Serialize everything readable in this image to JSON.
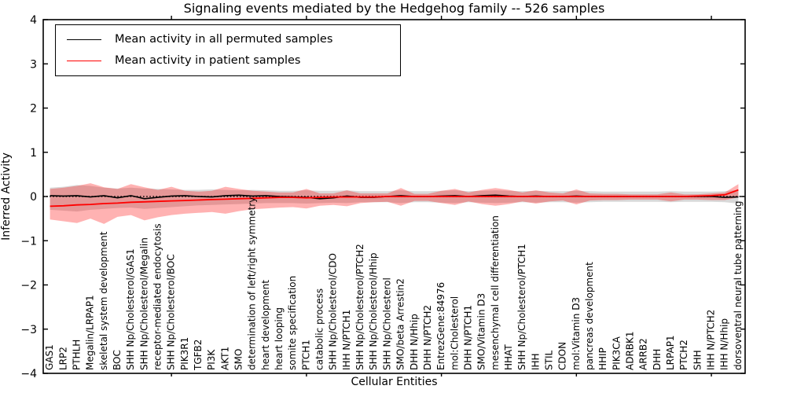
{
  "chart_data": {
    "type": "line",
    "title": "Signaling events mediated by the Hedgehog family -- 526 samples",
    "xlabel": "Cellular Entities",
    "ylabel": "Inferred Activity",
    "ylim": [
      -4,
      4
    ],
    "yticks": [
      4,
      3,
      2,
      1,
      0,
      -1,
      -2,
      -3,
      -4
    ],
    "ytick_labels": [
      "4",
      "3",
      "2",
      "1",
      "0",
      "−1",
      "−2",
      "−3",
      "−4"
    ],
    "xtick_positions": [
      10,
      20,
      30,
      40,
      50
    ],
    "grid": false,
    "legend": {
      "position": "upper-left",
      "items": [
        {
          "label": "Mean activity in all permuted samples",
          "color": "#000000"
        },
        {
          "label": "Mean activity in patient samples",
          "color": "#ff0000"
        }
      ]
    },
    "zero_reference_line": {
      "y": 0,
      "style": "dotted",
      "color": "#000000"
    },
    "categories": [
      "GAS1",
      "LRP2",
      "PTHLH",
      "Megalin/LRPAP1",
      "skeletal system development",
      "BOC",
      "SHH Np/Cholesterol/GAS1",
      "SHH Np/Cholesterol/Megalin",
      "receptor-mediated endocytosis",
      "SHH Np/Cholesterol/BOC",
      "PIK3R1",
      "TGFB2",
      "PI3K",
      "AKT1",
      "SMO",
      "determination of left/right symmetry",
      "heart development",
      "heart looping",
      "somite specification",
      "PTCH1",
      "catabolic process",
      "SHH Np/Cholesterol/CDO",
      "IHH N/PTCH1",
      "SHH Np/Cholesterol/PTCH2",
      "SHH Np/Cholesterol/Hhip",
      "SHH Np/Cholesterol",
      "SMO/beta Arrestin2",
      "DHH N/Hhip",
      "DHH N/PTCH2",
      "EntrezGene:84976",
      "mol:Cholesterol",
      "DHH N/PTCH1",
      "SMO/Vitamin D3",
      "mesenchymal cell differentiation",
      "HHAT",
      "SHH Np/Cholesterol/PTCH1",
      "IHH",
      "STIL",
      "CDON",
      "mol:Vitamin D3",
      "pancreas development",
      "HHIP",
      "PIK3CA",
      "ADRBK1",
      "ARRB2",
      "DHH",
      "LRPAP1",
      "PTCH2",
      "SHH",
      "IHH N/PTCH2",
      "IHH N/Hhip",
      "dorsoventral neural tube patterning"
    ],
    "series": [
      {
        "name": "Mean activity in all permuted samples",
        "color": "#000000",
        "style": "solid",
        "values": [
          0.02,
          0.01,
          0.02,
          -0.01,
          0.02,
          -0.03,
          0.02,
          -0.05,
          -0.02,
          0.01,
          0.02,
          0.0,
          -0.01,
          0.02,
          0.03,
          0.01,
          0.02,
          0.0,
          -0.01,
          -0.02,
          -0.05,
          -0.03,
          0.01,
          -0.02,
          -0.02,
          0.0,
          0.02,
          0.0,
          0.0,
          0.01,
          0.02,
          0.0,
          0.02,
          0.03,
          0.01,
          0.0,
          0.01,
          0.0,
          0.0,
          0.01,
          0.0,
          0.0,
          0.0,
          0.0,
          0.0,
          0.0,
          0.0,
          0.0,
          0.0,
          0.0,
          -0.02,
          -0.01
        ]
      },
      {
        "name": "Mean activity in patient samples",
        "color": "#ff0000",
        "style": "solid",
        "values": [
          -0.22,
          -0.21,
          -0.19,
          -0.18,
          -0.16,
          -0.15,
          -0.13,
          -0.12,
          -0.11,
          -0.1,
          -0.09,
          -0.08,
          -0.07,
          -0.06,
          -0.05,
          -0.04,
          -0.03,
          -0.02,
          -0.02,
          -0.03,
          -0.02,
          -0.01,
          -0.01,
          -0.01,
          -0.01,
          0.0,
          0.0,
          0.0,
          0.0,
          0.0,
          0.0,
          0.0,
          0.0,
          0.0,
          0.0,
          0.0,
          0.0,
          0.0,
          0.0,
          0.0,
          0.0,
          0.0,
          0.0,
          0.0,
          0.0,
          0.0,
          0.0,
          0.0,
          0.01,
          0.02,
          0.04,
          0.15
        ]
      }
    ],
    "bands": [
      {
        "name": "permuted-samples-range",
        "fill": "rgba(120,120,120,0.28)",
        "upper": [
          0.2,
          0.22,
          0.26,
          0.24,
          0.2,
          0.18,
          0.2,
          0.18,
          0.17,
          0.16,
          0.15,
          0.15,
          0.16,
          0.15,
          0.14,
          0.15,
          0.14,
          0.13,
          0.13,
          0.14,
          0.13,
          0.13,
          0.14,
          0.12,
          0.12,
          0.12,
          0.14,
          0.12,
          0.12,
          0.13,
          0.14,
          0.12,
          0.13,
          0.14,
          0.13,
          0.12,
          0.13,
          0.12,
          0.12,
          0.13,
          0.12,
          0.11,
          0.11,
          0.11,
          0.11,
          0.11,
          0.12,
          0.11,
          0.11,
          0.11,
          0.12,
          0.15
        ],
        "lower": [
          -0.3,
          -0.32,
          -0.34,
          -0.3,
          -0.28,
          -0.26,
          -0.25,
          -0.28,
          -0.26,
          -0.24,
          -0.22,
          -0.2,
          -0.19,
          -0.18,
          -0.17,
          -0.16,
          -0.15,
          -0.15,
          -0.15,
          -0.16,
          -0.15,
          -0.14,
          -0.15,
          -0.13,
          -0.13,
          -0.13,
          -0.15,
          -0.13,
          -0.13,
          -0.14,
          -0.15,
          -0.13,
          -0.14,
          -0.15,
          -0.14,
          -0.13,
          -0.14,
          -0.13,
          -0.13,
          -0.14,
          -0.13,
          -0.12,
          -0.12,
          -0.12,
          -0.12,
          -0.12,
          -0.13,
          -0.12,
          -0.12,
          -0.12,
          -0.13,
          -0.16
        ]
      },
      {
        "name": "patient-samples-range",
        "fill": "rgba(255,0,0,0.30)",
        "upper": [
          0.17,
          0.2,
          0.24,
          0.3,
          0.21,
          0.17,
          0.28,
          0.21,
          0.15,
          0.22,
          0.13,
          0.11,
          0.13,
          0.22,
          0.17,
          0.13,
          0.11,
          0.09,
          0.09,
          0.17,
          0.07,
          0.07,
          0.14,
          0.07,
          0.07,
          0.07,
          0.19,
          0.06,
          0.06,
          0.13,
          0.17,
          0.09,
          0.15,
          0.19,
          0.15,
          0.09,
          0.14,
          0.09,
          0.07,
          0.16,
          0.07,
          0.06,
          0.06,
          0.05,
          0.05,
          0.05,
          0.09,
          0.05,
          0.05,
          0.07,
          0.09,
          0.28
        ],
        "lower": [
          -0.52,
          -0.56,
          -0.6,
          -0.5,
          -0.62,
          -0.46,
          -0.42,
          -0.54,
          -0.47,
          -0.42,
          -0.39,
          -0.37,
          -0.35,
          -0.39,
          -0.33,
          -0.29,
          -0.27,
          -0.25,
          -0.24,
          -0.27,
          -0.21,
          -0.19,
          -0.22,
          -0.15,
          -0.13,
          -0.12,
          -0.21,
          -0.1,
          -0.1,
          -0.15,
          -0.19,
          -0.11,
          -0.17,
          -0.21,
          -0.17,
          -0.11,
          -0.16,
          -0.11,
          -0.09,
          -0.18,
          -0.09,
          -0.08,
          -0.08,
          -0.07,
          -0.07,
          -0.07,
          -0.11,
          -0.07,
          -0.07,
          -0.08,
          -0.08,
          -0.02
        ]
      }
    ]
  }
}
